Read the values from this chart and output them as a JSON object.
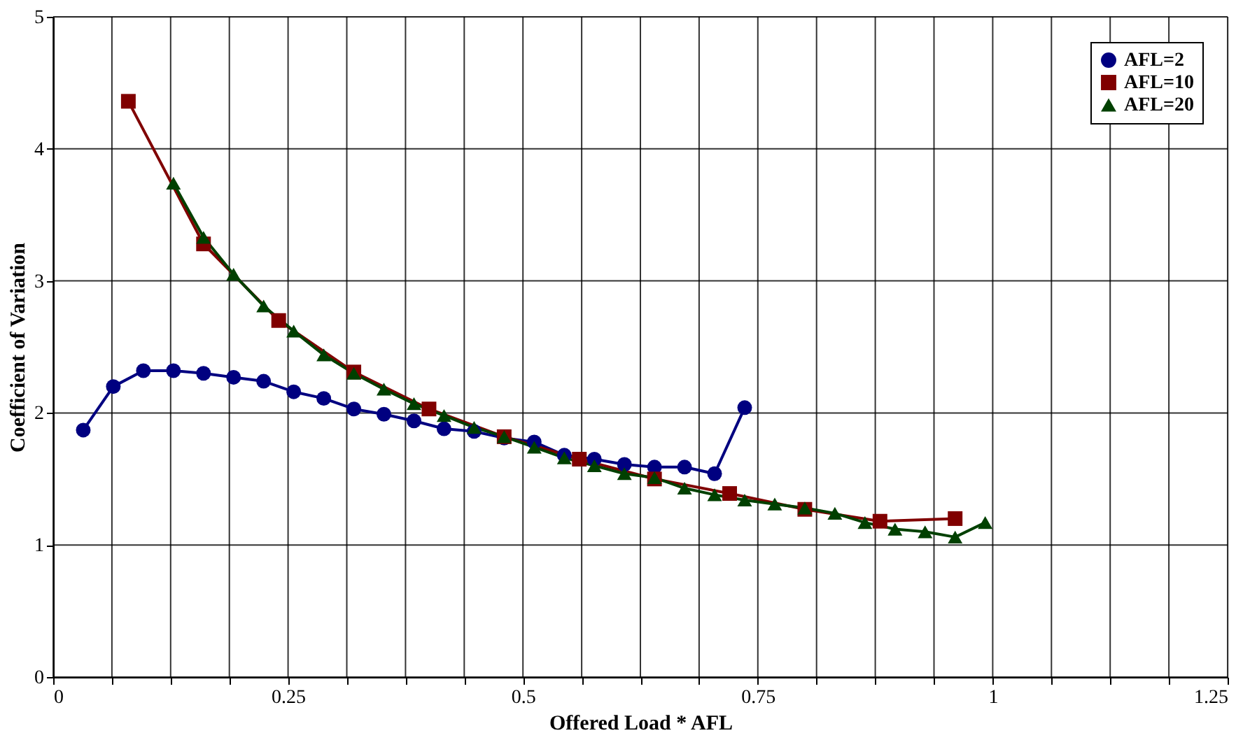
{
  "chart_data": {
    "type": "line",
    "xlabel": "Offered Load * AFL",
    "ylabel": "Coefficient of Variation",
    "xlim": [
      0,
      1.25
    ],
    "ylim": [
      0,
      5
    ],
    "xticks": [
      0,
      {
        "value": 0.0625,
        "label": null
      },
      {
        "value": 0.125,
        "label": null
      },
      {
        "value": 0.1875,
        "label": null
      },
      0.25,
      {
        "value": 0.3125,
        "label": null
      },
      {
        "value": 0.375,
        "label": null
      },
      {
        "value": 0.4375,
        "label": null
      },
      0.5,
      {
        "value": 0.5625,
        "label": null
      },
      {
        "value": 0.625,
        "label": null
      },
      {
        "value": 0.6875,
        "label": null
      },
      0.75,
      {
        "value": 0.8125,
        "label": null
      },
      {
        "value": 0.875,
        "label": null
      },
      {
        "value": 0.9375,
        "label": null
      },
      1,
      {
        "value": 1.0625,
        "label": null
      },
      {
        "value": 1.125,
        "label": null
      },
      {
        "value": 1.1875,
        "label": null
      },
      1.25
    ],
    "yticks": [
      0,
      1,
      2,
      3,
      4,
      5
    ],
    "grid": true,
    "legend": "top right",
    "line_style": "solid",
    "series": [
      {
        "name": "AFL=2",
        "color": "#000080",
        "marker": "circle",
        "x": [
          0.032,
          0.064,
          0.096,
          0.128,
          0.16,
          0.192,
          0.224,
          0.256,
          0.288,
          0.32,
          0.352,
          0.384,
          0.416,
          0.448,
          0.48,
          0.512,
          0.544,
          0.576,
          0.608,
          0.64,
          0.672,
          0.704,
          0.736
        ],
        "values": [
          1.87,
          2.2,
          2.32,
          2.32,
          2.3,
          2.27,
          2.24,
          2.16,
          2.11,
          2.03,
          1.99,
          1.94,
          1.88,
          1.86,
          1.81,
          1.78,
          1.68,
          1.65,
          1.61,
          1.59,
          1.59,
          1.54,
          2.04
        ]
      },
      {
        "name": "AFL=10",
        "color": "#800000",
        "marker": "square",
        "x": [
          0.08,
          0.16,
          0.24,
          0.32,
          0.4,
          0.48,
          0.56,
          0.64,
          0.72,
          0.8,
          0.88,
          0.96
        ],
        "values": [
          4.36,
          3.28,
          2.7,
          2.31,
          2.03,
          1.82,
          1.65,
          1.5,
          1.39,
          1.27,
          1.18,
          1.2
        ]
      },
      {
        "name": "AFL=20",
        "color": "#004000",
        "marker": "triangle",
        "x": [
          0.128,
          0.16,
          0.192,
          0.224,
          0.256,
          0.288,
          0.32,
          0.352,
          0.384,
          0.416,
          0.448,
          0.48,
          0.512,
          0.544,
          0.576,
          0.608,
          0.64,
          0.672,
          0.704,
          0.736,
          0.768,
          0.8,
          0.832,
          0.864,
          0.896,
          0.928,
          0.96,
          0.992
        ],
        "values": [
          3.74,
          3.33,
          3.05,
          2.81,
          2.62,
          2.44,
          2.3,
          2.18,
          2.07,
          1.98,
          1.89,
          1.82,
          1.74,
          1.66,
          1.6,
          1.54,
          1.51,
          1.43,
          1.38,
          1.34,
          1.31,
          1.28,
          1.24,
          1.17,
          1.12,
          1.1,
          1.06,
          1.17
        ]
      }
    ]
  }
}
